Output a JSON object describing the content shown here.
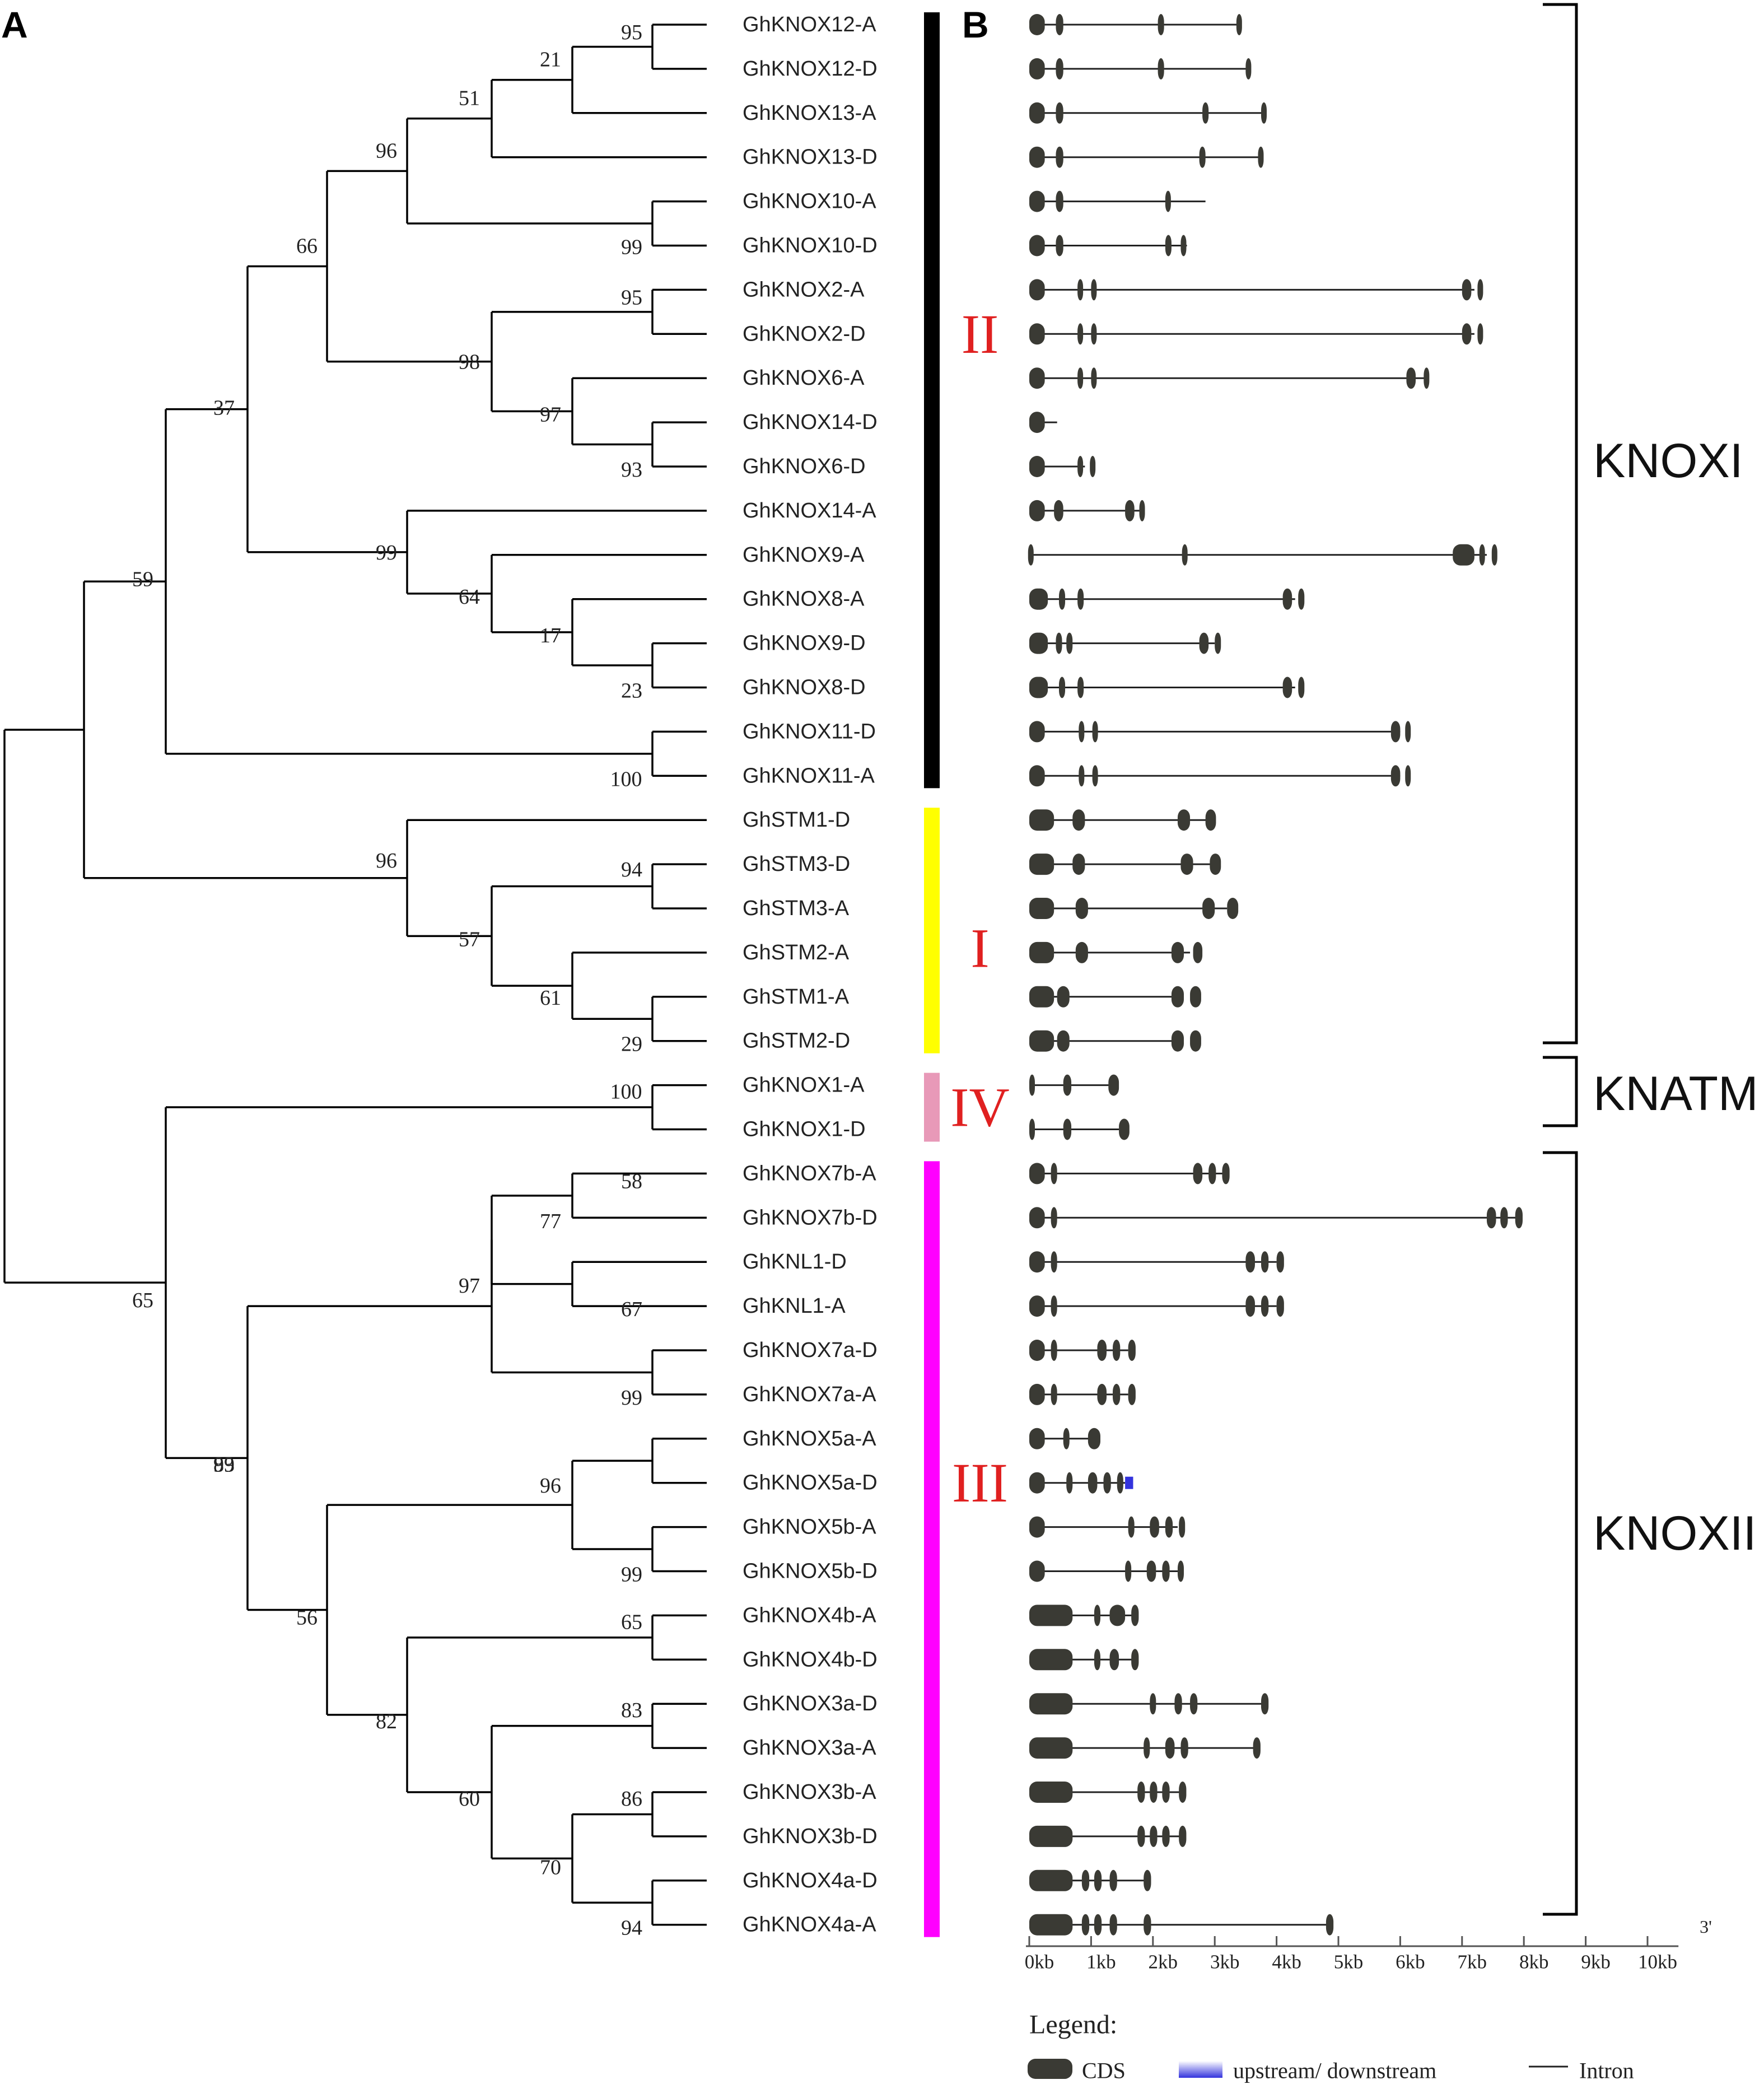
{
  "panels": {
    "a": "A",
    "b": "B"
  },
  "colors": {
    "group_II": "#000000",
    "group_I": "#ffff00",
    "group_IV": "#e899b8",
    "group_III": "#ff00ff",
    "roman_label": "#e02020",
    "cds": "#3a3a34",
    "utr": "#3333dd"
  },
  "tree": {
    "leaves": [
      "GhKNOX12-A",
      "GhKNOX12-D",
      "GhKNOX13-A",
      "GhKNOX13-D",
      "GhKNOX10-A",
      "GhKNOX10-D",
      "GhKNOX2-A",
      "GhKNOX2-D",
      "GhKNOX6-A",
      "GhKNOX14-D",
      "GhKNOX6-D",
      "GhKNOX14-A",
      "GhKNOX9-A",
      "GhKNOX8-A",
      "GhKNOX9-D",
      "GhKNOX8-D",
      "GhKNOX11-D",
      "GhKNOX11-A",
      "GhSTM1-D",
      "GhSTM3-D",
      "GhSTM3-A",
      "GhSTM2-A",
      "GhSTM1-A",
      "GhSTM2-D",
      "GhKNOX1-A",
      "GhKNOX1-D",
      "GhKNOX7b-A",
      "GhKNOX7b-D",
      "GhKNL1-D",
      "GhKNL1-A",
      "GhKNOX7a-D",
      "GhKNOX7a-A",
      "GhKNOX5a-A",
      "GhKNOX5a-D",
      "GhKNOX5b-A",
      "GhKNOX5b-D",
      "GhKNOX4b-A",
      "GhKNOX4b-D",
      "GhKNOX3a-D",
      "GhKNOX3a-A",
      "GhKNOX3b-A",
      "GhKNOX3b-D",
      "GhKNOX4a-D",
      "GhKNOX4a-A"
    ],
    "bootstrap": [
      "95",
      "21",
      "51",
      "96",
      "99",
      "66",
      "95",
      "98",
      "97",
      "93",
      "37",
      "99",
      "64",
      "17",
      "23",
      "100",
      "59",
      "94",
      "96",
      "57",
      "61",
      "29",
      "100",
      "58",
      "77",
      "97",
      "67",
      "99",
      "65",
      "83",
      "99",
      "96",
      "99",
      "65",
      "56",
      "83",
      "82",
      "86",
      "60",
      "70",
      "94"
    ]
  },
  "groups": [
    "II",
    "I",
    "IV",
    "III"
  ],
  "families": [
    "KNOXI",
    "KNATM",
    "KNOXII"
  ],
  "axis": {
    "ticks": [
      "0kb",
      "1kb",
      "2kb",
      "3kb",
      "4kb",
      "5kb",
      "6kb",
      "7kb",
      "8kb",
      "9kb",
      "10kb"
    ],
    "end_label": "3'"
  },
  "legend": {
    "title": "Legend:",
    "cds": "CDS",
    "utr": "upstream/ downstream",
    "intron": "Intron"
  },
  "gene_structures_kb": [
    {
      "gene": "GhKNOX12-A",
      "line": [
        0,
        3.4
      ],
      "cds": [
        [
          0,
          0.25
        ],
        [
          0.43,
          0.55
        ],
        [
          2.08,
          2.18
        ],
        [
          3.35,
          3.42
        ]
      ]
    },
    {
      "gene": "GhKNOX12-D",
      "line": [
        0,
        3.55
      ],
      "cds": [
        [
          0,
          0.25
        ],
        [
          0.43,
          0.55
        ],
        [
          2.08,
          2.18
        ],
        [
          3.5,
          3.57
        ]
      ]
    },
    {
      "gene": "GhKNOX13-A",
      "line": [
        0,
        3.8
      ],
      "cds": [
        [
          0,
          0.25
        ],
        [
          0.43,
          0.55
        ],
        [
          2.8,
          2.9
        ],
        [
          3.75,
          3.82
        ]
      ]
    },
    {
      "gene": "GhKNOX13-D",
      "line": [
        0,
        3.75
      ],
      "cds": [
        [
          0,
          0.25
        ],
        [
          0.43,
          0.55
        ],
        [
          2.75,
          2.85
        ],
        [
          3.7,
          3.77
        ]
      ]
    },
    {
      "gene": "GhKNOX10-A",
      "line": [
        0,
        2.85
      ],
      "cds": [
        [
          0,
          0.25
        ],
        [
          0.43,
          0.55
        ],
        [
          2.2,
          2.28
        ]
      ]
    },
    {
      "gene": "GhKNOX10-D",
      "line": [
        0,
        2.55
      ],
      "cds": [
        [
          0,
          0.25
        ],
        [
          0.43,
          0.55
        ],
        [
          2.2,
          2.3
        ],
        [
          2.45,
          2.53
        ]
      ]
    },
    {
      "gene": "GhKNOX2-A",
      "line": [
        0,
        7.2
      ],
      "cds": [
        [
          0,
          0.25
        ],
        [
          0.78,
          0.86
        ],
        [
          1.0,
          1.08
        ],
        [
          7.0,
          7.15
        ],
        [
          7.25,
          7.32
        ]
      ]
    },
    {
      "gene": "GhKNOX2-D",
      "line": [
        0,
        7.2
      ],
      "cds": [
        [
          0,
          0.25
        ],
        [
          0.78,
          0.86
        ],
        [
          1.0,
          1.08
        ],
        [
          7.0,
          7.15
        ],
        [
          7.25,
          7.32
        ]
      ]
    },
    {
      "gene": "GhKNOX6-A",
      "line": [
        0,
        6.4
      ],
      "cds": [
        [
          0,
          0.25
        ],
        [
          0.78,
          0.86
        ],
        [
          1.0,
          1.08
        ],
        [
          6.1,
          6.25
        ],
        [
          6.38,
          6.46
        ]
      ]
    },
    {
      "gene": "GhKNOX14-D",
      "line": [
        0,
        0.45
      ],
      "cds": [
        [
          0,
          0.25
        ]
      ]
    },
    {
      "gene": "GhKNOX6-D",
      "line": [
        0,
        0.9
      ],
      "cds": [
        [
          0,
          0.25
        ],
        [
          0.78,
          0.86
        ],
        [
          0.98,
          1.06
        ]
      ]
    },
    {
      "gene": "GhKNOX14-A",
      "line": [
        0,
        1.8
      ],
      "cds": [
        [
          0,
          0.25
        ],
        [
          0.4,
          0.55
        ],
        [
          1.55,
          1.7
        ],
        [
          1.78,
          1.86
        ]
      ]
    },
    {
      "gene": "GhKNOX9-A",
      "line": [
        0,
        7.4
      ],
      "cds": [
        [
          -0.02,
          0.03
        ],
        [
          2.47,
          2.53
        ],
        [
          6.85,
          7.2
        ],
        [
          7.28,
          7.36
        ],
        [
          7.48,
          7.56
        ]
      ]
    },
    {
      "gene": "GhKNOX8-A",
      "line": [
        0,
        4.3
      ],
      "cds": [
        [
          0,
          0.3
        ],
        [
          0.48,
          0.58
        ],
        [
          0.78,
          0.88
        ],
        [
          4.1,
          4.25
        ],
        [
          4.35,
          4.45
        ]
      ]
    },
    {
      "gene": "GhKNOX9-D",
      "line": [
        0,
        3.0
      ],
      "cds": [
        [
          0,
          0.3
        ],
        [
          0.43,
          0.53
        ],
        [
          0.6,
          0.7
        ],
        [
          2.75,
          2.9
        ],
        [
          3.0,
          3.1
        ]
      ]
    },
    {
      "gene": "GhKNOX8-D",
      "line": [
        0,
        4.3
      ],
      "cds": [
        [
          0,
          0.3
        ],
        [
          0.48,
          0.58
        ],
        [
          0.78,
          0.88
        ],
        [
          4.1,
          4.25
        ],
        [
          4.35,
          4.45
        ]
      ]
    },
    {
      "gene": "GhKNOX11-D",
      "line": [
        0,
        6.0
      ],
      "cds": [
        [
          0,
          0.25
        ],
        [
          0.8,
          0.88
        ],
        [
          1.02,
          1.1
        ],
        [
          5.85,
          6.0
        ],
        [
          6.08,
          6.16
        ]
      ]
    },
    {
      "gene": "GhKNOX11-A",
      "line": [
        0,
        6.0
      ],
      "cds": [
        [
          0,
          0.25
        ],
        [
          0.8,
          0.88
        ],
        [
          1.02,
          1.1
        ],
        [
          5.85,
          6.0
        ],
        [
          6.08,
          6.16
        ]
      ]
    },
    {
      "gene": "GhSTM1-D",
      "line": [
        0,
        2.9
      ],
      "cds": [
        [
          0,
          0.4
        ],
        [
          0.7,
          0.9
        ],
        [
          2.4,
          2.6
        ],
        [
          2.85,
          3.02
        ]
      ]
    },
    {
      "gene": "GhSTM3-D",
      "line": [
        0,
        3.0
      ],
      "cds": [
        [
          0,
          0.4
        ],
        [
          0.7,
          0.9
        ],
        [
          2.45,
          2.65
        ],
        [
          2.92,
          3.1
        ]
      ]
    },
    {
      "gene": "GhSTM3-A",
      "line": [
        0,
        3.2
      ],
      "cds": [
        [
          0,
          0.4
        ],
        [
          0.75,
          0.95
        ],
        [
          2.8,
          3.0
        ],
        [
          3.2,
          3.38
        ]
      ]
    },
    {
      "gene": "GhSTM2-A",
      "line": [
        0,
        2.6
      ],
      "cds": [
        [
          0,
          0.4
        ],
        [
          0.75,
          0.95
        ],
        [
          2.3,
          2.5
        ],
        [
          2.65,
          2.8
        ]
      ]
    },
    {
      "gene": "GhSTM1-A",
      "line": [
        0,
        2.5
      ],
      "cds": [
        [
          0,
          0.4
        ],
        [
          0.45,
          0.65
        ],
        [
          2.3,
          2.5
        ],
        [
          2.6,
          2.78
        ]
      ]
    },
    {
      "gene": "GhSTM2-D",
      "line": [
        0,
        2.5
      ],
      "cds": [
        [
          0,
          0.4
        ],
        [
          0.45,
          0.65
        ],
        [
          2.3,
          2.5
        ],
        [
          2.6,
          2.78
        ]
      ]
    },
    {
      "gene": "GhKNOX1-A",
      "line": [
        0,
        1.3
      ],
      "cds": [
        [
          0,
          0.08
        ],
        [
          0.55,
          0.68
        ],
        [
          1.28,
          1.45
        ]
      ]
    },
    {
      "gene": "GhKNOX1-D",
      "line": [
        0,
        1.45
      ],
      "cds": [
        [
          0,
          0.08
        ],
        [
          0.55,
          0.68
        ],
        [
          1.45,
          1.62
        ]
      ]
    },
    {
      "gene": "GhKNOX7b-A",
      "line": [
        0,
        3.2
      ],
      "cds": [
        [
          0,
          0.25
        ],
        [
          0.35,
          0.45
        ],
        [
          2.65,
          2.8
        ],
        [
          2.9,
          3.02
        ],
        [
          3.12,
          3.24
        ]
      ]
    },
    {
      "gene": "GhKNOX7b-D",
      "line": [
        0,
        7.9
      ],
      "cds": [
        [
          0,
          0.25
        ],
        [
          0.35,
          0.45
        ],
        [
          7.4,
          7.55
        ],
        [
          7.62,
          7.74
        ],
        [
          7.86,
          7.98
        ]
      ]
    },
    {
      "gene": "GhKNL1-D",
      "line": [
        0,
        4.0
      ],
      "cds": [
        [
          0,
          0.25
        ],
        [
          0.35,
          0.45
        ],
        [
          3.5,
          3.65
        ],
        [
          3.75,
          3.87
        ],
        [
          4.0,
          4.12
        ]
      ]
    },
    {
      "gene": "GhKNL1-A",
      "line": [
        0,
        4.0
      ],
      "cds": [
        [
          0,
          0.25
        ],
        [
          0.35,
          0.45
        ],
        [
          3.5,
          3.65
        ],
        [
          3.75,
          3.87
        ],
        [
          4.0,
          4.12
        ]
      ]
    },
    {
      "gene": "GhKNOX7a-D",
      "line": [
        0,
        1.6
      ],
      "cds": [
        [
          0,
          0.25
        ],
        [
          0.35,
          0.45
        ],
        [
          1.1,
          1.25
        ],
        [
          1.35,
          1.47
        ],
        [
          1.6,
          1.72
        ]
      ]
    },
    {
      "gene": "GhKNOX7a-A",
      "line": [
        0,
        1.6
      ],
      "cds": [
        [
          0,
          0.25
        ],
        [
          0.35,
          0.45
        ],
        [
          1.1,
          1.25
        ],
        [
          1.35,
          1.47
        ],
        [
          1.6,
          1.72
        ]
      ]
    },
    {
      "gene": "GhKNOX5a-A",
      "line": [
        0,
        1.0
      ],
      "cds": [
        [
          0,
          0.25
        ],
        [
          0.55,
          0.65
        ],
        [
          0.95,
          1.15
        ]
      ]
    },
    {
      "gene": "GhKNOX5a-D",
      "line": [
        0,
        1.55
      ],
      "cds": [
        [
          0,
          0.25
        ],
        [
          0.6,
          0.7
        ],
        [
          0.95,
          1.1
        ],
        [
          1.2,
          1.32
        ],
        [
          1.42,
          1.52
        ]
      ],
      "utr": [
        [
          1.55,
          1.68
        ]
      ]
    },
    {
      "gene": "GhKNOX5b-A",
      "line": [
        0,
        2.4
      ],
      "cds": [
        [
          0,
          0.25
        ],
        [
          1.6,
          1.7
        ],
        [
          1.95,
          2.1
        ],
        [
          2.2,
          2.32
        ],
        [
          2.42,
          2.52
        ]
      ]
    },
    {
      "gene": "GhKNOX5b-D",
      "line": [
        0,
        2.4
      ],
      "cds": [
        [
          0,
          0.25
        ],
        [
          1.55,
          1.65
        ],
        [
          1.9,
          2.05
        ],
        [
          2.15,
          2.27
        ],
        [
          2.4,
          2.5
        ]
      ]
    },
    {
      "gene": "GhKNOX4b-A",
      "line": [
        0,
        1.7
      ],
      "cds": [
        [
          0,
          0.7
        ],
        [
          1.05,
          1.15
        ],
        [
          1.3,
          1.55
        ],
        [
          1.65,
          1.77
        ]
      ]
    },
    {
      "gene": "GhKNOX4b-D",
      "line": [
        0,
        1.7
      ],
      "cds": [
        [
          0,
          0.7
        ],
        [
          1.05,
          1.15
        ],
        [
          1.3,
          1.45
        ],
        [
          1.65,
          1.77
        ]
      ]
    },
    {
      "gene": "GhKNOX3a-D",
      "line": [
        0,
        3.8
      ],
      "cds": [
        [
          0,
          0.7
        ],
        [
          1.95,
          2.05
        ],
        [
          2.35,
          2.47
        ],
        [
          2.6,
          2.72
        ],
        [
          3.75,
          3.87
        ]
      ]
    },
    {
      "gene": "GhKNOX3a-A",
      "line": [
        0,
        3.7
      ],
      "cds": [
        [
          0,
          0.7
        ],
        [
          1.85,
          1.95
        ],
        [
          2.2,
          2.35
        ],
        [
          2.45,
          2.57
        ],
        [
          3.62,
          3.74
        ]
      ]
    },
    {
      "gene": "GhKNOX3b-A",
      "line": [
        0,
        2.45
      ],
      "cds": [
        [
          0,
          0.7
        ],
        [
          1.75,
          1.87
        ],
        [
          1.95,
          2.07
        ],
        [
          2.15,
          2.27
        ],
        [
          2.42,
          2.54
        ]
      ]
    },
    {
      "gene": "GhKNOX3b-D",
      "line": [
        0,
        2.45
      ],
      "cds": [
        [
          0,
          0.7
        ],
        [
          1.75,
          1.87
        ],
        [
          1.95,
          2.07
        ],
        [
          2.15,
          2.27
        ],
        [
          2.42,
          2.54
        ]
      ]
    },
    {
      "gene": "GhKNOX4a-D",
      "line": [
        0,
        1.9
      ],
      "cds": [
        [
          0,
          0.7
        ],
        [
          0.85,
          0.97
        ],
        [
          1.05,
          1.17
        ],
        [
          1.3,
          1.42
        ],
        [
          1.85,
          1.97
        ]
      ]
    },
    {
      "gene": "GhKNOX4a-A",
      "line": [
        0,
        4.85
      ],
      "cds": [
        [
          0,
          0.7
        ],
        [
          0.85,
          0.97
        ],
        [
          1.05,
          1.17
        ],
        [
          1.3,
          1.42
        ],
        [
          1.85,
          1.97
        ],
        [
          4.8,
          4.92
        ]
      ]
    }
  ]
}
